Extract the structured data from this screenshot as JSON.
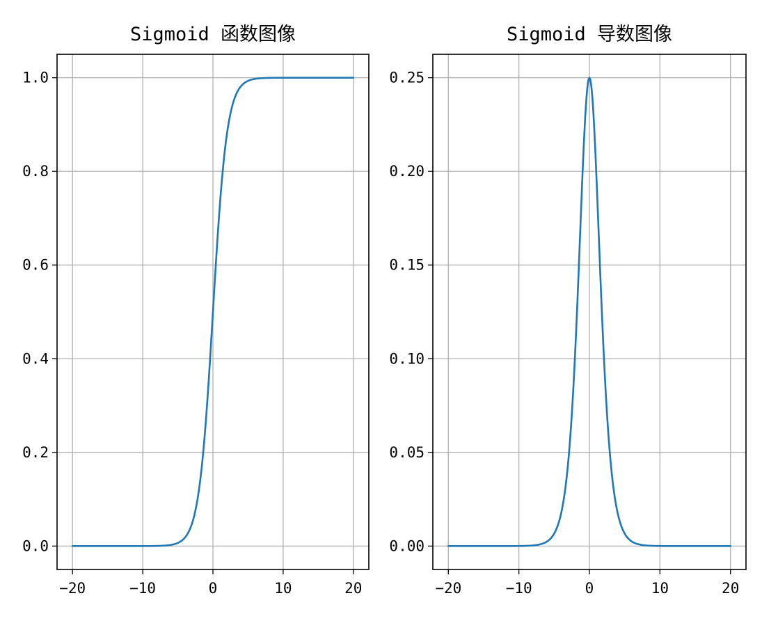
{
  "colors": {
    "series": "#1f77b4"
  },
  "chart_data": [
    {
      "type": "line",
      "title": "Sigmoid 函数图像",
      "function": "sigmoid",
      "x": [
        -20,
        -15,
        -10,
        -8,
        -6,
        -5,
        -4,
        -3,
        -2,
        -1.5,
        -1,
        -0.5,
        0,
        0.5,
        1,
        1.5,
        2,
        3,
        4,
        5,
        6,
        8,
        10,
        15,
        20
      ],
      "y": [
        0.0,
        0.0,
        5e-05,
        0.00034,
        0.0025,
        0.0067,
        0.018,
        0.047,
        0.119,
        0.182,
        0.269,
        0.378,
        0.5,
        0.622,
        0.731,
        0.818,
        0.881,
        0.953,
        0.982,
        0.993,
        0.9975,
        0.9997,
        1.0,
        1.0,
        1.0
      ],
      "xlim": [
        -22.2,
        22.2
      ],
      "ylim": [
        -0.05,
        1.05
      ],
      "xticks": [
        -20,
        -10,
        0,
        10,
        20
      ],
      "xtick_labels": [
        "−20",
        "−10",
        "0",
        "10",
        "20"
      ],
      "yticks": [
        0.0,
        0.2,
        0.4,
        0.6,
        0.8,
        1.0
      ],
      "ytick_labels": [
        "0.0",
        "0.2",
        "0.4",
        "0.6",
        "0.8",
        "1.0"
      ],
      "grid": true
    },
    {
      "type": "line",
      "title": "Sigmoid 导数图像",
      "function": "sigmoid-derivative",
      "x": [
        -20,
        -15,
        -10,
        -8,
        -6,
        -5,
        -4,
        -3,
        -2,
        -1.5,
        -1,
        -0.5,
        0,
        0.5,
        1,
        1.5,
        2,
        3,
        4,
        5,
        6,
        8,
        10,
        15,
        20
      ],
      "y": [
        0.0,
        0.0,
        5e-05,
        0.00034,
        0.0025,
        0.0066,
        0.0177,
        0.0452,
        0.105,
        0.149,
        0.197,
        0.235,
        0.25,
        0.235,
        0.197,
        0.149,
        0.105,
        0.0452,
        0.0177,
        0.0066,
        0.0025,
        0.00034,
        5e-05,
        0.0,
        0.0
      ],
      "xlim": [
        -22.2,
        22.2
      ],
      "ylim": [
        -0.0125,
        0.2625
      ],
      "xticks": [
        -20,
        -10,
        0,
        10,
        20
      ],
      "xtick_labels": [
        "−20",
        "−10",
        "0",
        "10",
        "20"
      ],
      "yticks": [
        0.0,
        0.05,
        0.1,
        0.15,
        0.2,
        0.25
      ],
      "ytick_labels": [
        "0.00",
        "0.05",
        "0.10",
        "0.15",
        "0.20",
        "0.25"
      ],
      "grid": true
    }
  ]
}
